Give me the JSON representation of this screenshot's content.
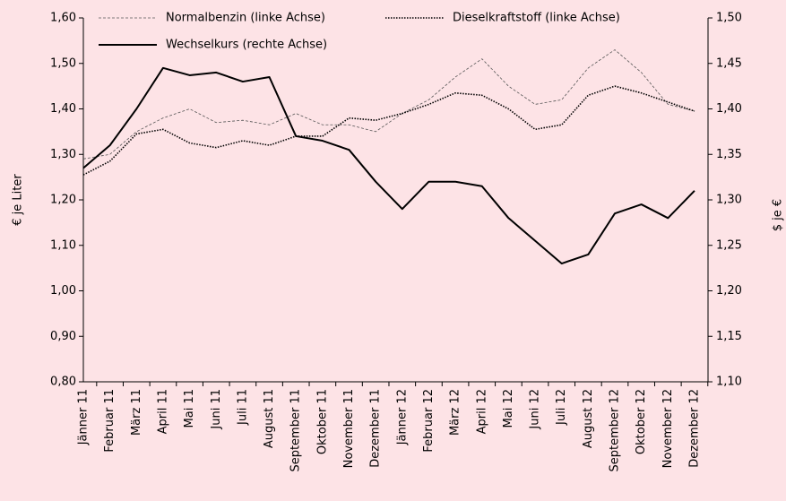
{
  "chart_data": {
    "type": "line",
    "categories": [
      "Jänner 11",
      "Februar 11",
      "März 11",
      "April 11",
      "Mai 11",
      "Juni 11",
      "Juli 11",
      "August 11",
      "September 11",
      "Oktober 11",
      "November 11",
      "Dezember 11",
      "Jänner 12",
      "Februar 12",
      "März 12",
      "April 12",
      "Mai 12",
      "Juni 12",
      "Juli 12",
      "August 12",
      "September 12",
      "Oktober 12",
      "November 12",
      "Dezember 12"
    ],
    "series": [
      {
        "name": "Normalbenzin (linke Achse)",
        "color": "#555555",
        "style": "dashed",
        "axis": "y",
        "values": [
          1.29,
          1.3,
          1.35,
          1.38,
          1.4,
          1.37,
          1.375,
          1.365,
          1.39,
          1.365,
          1.365,
          1.35,
          1.39,
          1.42,
          1.47,
          1.51,
          1.45,
          1.41,
          1.42,
          1.49,
          1.53,
          1.48,
          1.41,
          1.395
        ]
      },
      {
        "name": "Dieselkraftstoff (linke Achse)",
        "color": "#000000",
        "style": "dotted",
        "axis": "y",
        "values": [
          1.255,
          1.285,
          1.345,
          1.355,
          1.325,
          1.315,
          1.33,
          1.32,
          1.34,
          1.34,
          1.38,
          1.375,
          1.39,
          1.41,
          1.435,
          1.43,
          1.4,
          1.355,
          1.365,
          1.43,
          1.45,
          1.435,
          1.415,
          1.395
        ]
      },
      {
        "name": "Wechselkurs (rechte Achse)",
        "color": "#000000",
        "style": "solid",
        "axis": "y2",
        "values": [
          1.335,
          1.36,
          1.4,
          1.445,
          1.437,
          1.44,
          1.43,
          1.435,
          1.37,
          1.365,
          1.355,
          1.32,
          1.29,
          1.32,
          1.32,
          1.315,
          1.28,
          1.255,
          1.23,
          1.24,
          1.285,
          1.295,
          1.28,
          1.31
        ]
      }
    ],
    "ylabel": "€ je Liter",
    "y2label": "$ je €",
    "ylim": [
      0.8,
      1.6
    ],
    "yticks": [
      {
        "value": 0.8,
        "label": "0,80"
      },
      {
        "value": 0.9,
        "label": "0,90"
      },
      {
        "value": 1.0,
        "label": "1,00"
      },
      {
        "value": 1.1,
        "label": "1,10"
      },
      {
        "value": 1.2,
        "label": "1,20"
      },
      {
        "value": 1.3,
        "label": "1,30"
      },
      {
        "value": 1.4,
        "label": "1,40"
      },
      {
        "value": 1.5,
        "label": "1,50"
      },
      {
        "value": 1.6,
        "label": "1,60"
      }
    ],
    "y2lim": [
      1.1,
      1.5
    ],
    "y2ticks": [
      {
        "value": 1.1,
        "label": "1,10"
      },
      {
        "value": 1.15,
        "label": "1,15"
      },
      {
        "value": 1.2,
        "label": "1,20"
      },
      {
        "value": 1.25,
        "label": "1,25"
      },
      {
        "value": 1.3,
        "label": "1,30"
      },
      {
        "value": 1.35,
        "label": "1,35"
      },
      {
        "value": 1.4,
        "label": "1,40"
      },
      {
        "value": 1.45,
        "label": "1,45"
      },
      {
        "value": 1.5,
        "label": "1,50"
      }
    ],
    "grid": false
  }
}
